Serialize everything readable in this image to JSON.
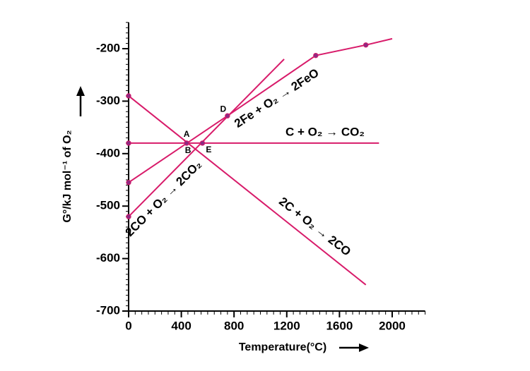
{
  "chart_data": {
    "type": "line",
    "x_label": "Temperature(°C)",
    "y_label": "G°/kJ mol⁻¹ of O₂",
    "xlim": [
      0,
      2250
    ],
    "ylim": [
      -700,
      -150
    ],
    "xticks": [
      0,
      400,
      800,
      1200,
      1600,
      2000
    ],
    "yticks": [
      -200,
      -300,
      -400,
      -500,
      -600,
      -700
    ],
    "series": [
      {
        "name": "C + O₂ → CO₂",
        "color": "#d81b6a",
        "x": [
          0,
          1900
        ],
        "values": [
          -380,
          -380
        ]
      },
      {
        "name": "2C + O₂ → 2CO",
        "color": "#d81b6a",
        "x": [
          0,
          1800
        ],
        "values": [
          -290,
          -650
        ]
      },
      {
        "name": "2CO + O₂ → 2CO₂",
        "color": "#d81b6a",
        "x": [
          0,
          1180
        ],
        "values": [
          -520,
          -220
        ]
      },
      {
        "name": "2Fe + O₂ → 2FeO",
        "color": "#d81b6a",
        "x": [
          0,
          750,
          1420,
          1800,
          2000
        ],
        "values": [
          -455,
          -328,
          -213,
          -193,
          -181
        ]
      }
    ],
    "points": [
      {
        "label": "A",
        "x": 440,
        "y": -380
      },
      {
        "label": "B",
        "x": 440,
        "y": -380
      },
      {
        "label": "E",
        "x": 560,
        "y": -380
      },
      {
        "label": "D",
        "x": 750,
        "y": -328
      },
      {
        "x": 0,
        "y": -290
      },
      {
        "x": 0,
        "y": -380
      },
      {
        "x": 0,
        "y": -455
      },
      {
        "x": 0,
        "y": -520
      },
      {
        "x": 1420,
        "y": -213
      },
      {
        "x": 1800,
        "y": -193
      }
    ],
    "point_color": "#8e2a82"
  }
}
